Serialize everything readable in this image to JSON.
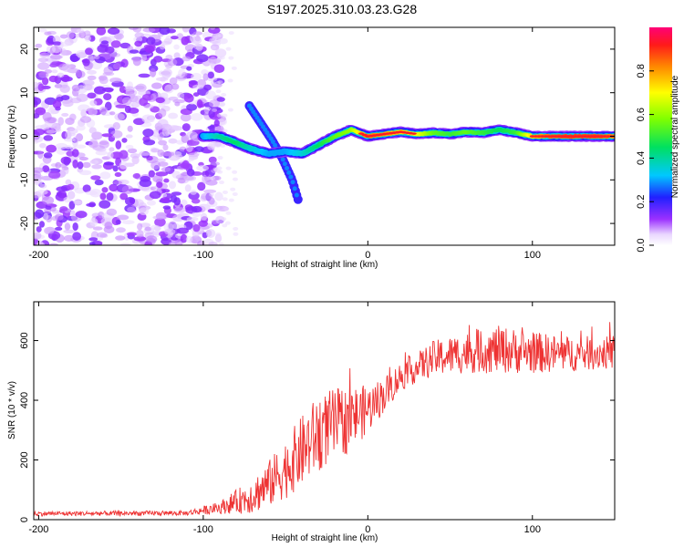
{
  "title": "S197.2025.310.03.23.G28",
  "chart_data": [
    {
      "type": "heatmap",
      "xlabel": "Height of straight line (km)",
      "ylabel": "Frequency (Hz)",
      "xlim": [
        -203,
        150
      ],
      "ylim": [
        -25,
        25
      ],
      "xticks": [
        -200,
        -100,
        0,
        100
      ],
      "yticks": [
        -20,
        -10,
        0,
        10,
        20
      ],
      "colorbar": {
        "label": "Normalized spectral amplitude",
        "range": [
          0,
          1
        ],
        "ticks": [
          0.0,
          0.2,
          0.4,
          0.6,
          0.8
        ]
      },
      "ridge": {
        "description_x": [
          -100,
          -90,
          -80,
          -70,
          -60,
          -50,
          -40,
          -30,
          -20,
          -10,
          0,
          10,
          20,
          30,
          40,
          50,
          60,
          70,
          80,
          90,
          100,
          110,
          120,
          130,
          140,
          150
        ],
        "freq": [
          0,
          0,
          -1.5,
          -3,
          -4,
          -3.5,
          -4,
          -2,
          0,
          1.5,
          0,
          0.5,
          1,
          0.5,
          0.8,
          0.5,
          1,
          0.8,
          1.5,
          0.8,
          0,
          0,
          0,
          0,
          0,
          0
        ],
        "amplitude": [
          0.3,
          0.4,
          0.45,
          0.35,
          0.3,
          0.3,
          0.35,
          0.45,
          0.55,
          0.6,
          0.85,
          0.8,
          0.75,
          0.7,
          0.55,
          0.5,
          0.55,
          0.5,
          0.45,
          0.5,
          0.75,
          0.85,
          0.9,
          0.9,
          0.9,
          0.8
        ]
      },
      "secondary_branch": {
        "x": [
          -72,
          -65,
          -58,
          -52,
          -46,
          -42
        ],
        "freq": [
          7,
          3,
          -1,
          -5,
          -10,
          -15
        ]
      }
    },
    {
      "type": "line",
      "xlabel": "Height of straight line (km)",
      "ylabel": "SNR (10 * v/v)",
      "xlim": [
        -203,
        150
      ],
      "ylim": [
        0,
        730
      ],
      "xticks": [
        -200,
        -100,
        0,
        100
      ],
      "yticks": [
        0,
        200,
        400,
        600
      ],
      "color": "#ee3333",
      "trend_x": [
        -203,
        -110,
        -90,
        -70,
        -60,
        -50,
        -40,
        -30,
        -20,
        -10,
        0,
        10,
        20,
        30,
        40,
        60,
        80,
        100,
        120,
        150
      ],
      "trend_y": [
        20,
        22,
        40,
        80,
        120,
        170,
        230,
        290,
        320,
        340,
        370,
        420,
        480,
        510,
        540,
        560,
        570,
        560,
        555,
        560
      ],
      "noise_amp": [
        8,
        8,
        20,
        60,
        80,
        100,
        120,
        130,
        120,
        110,
        80,
        60,
        50,
        50,
        60,
        70,
        80,
        70,
        60,
        55
      ]
    }
  ]
}
